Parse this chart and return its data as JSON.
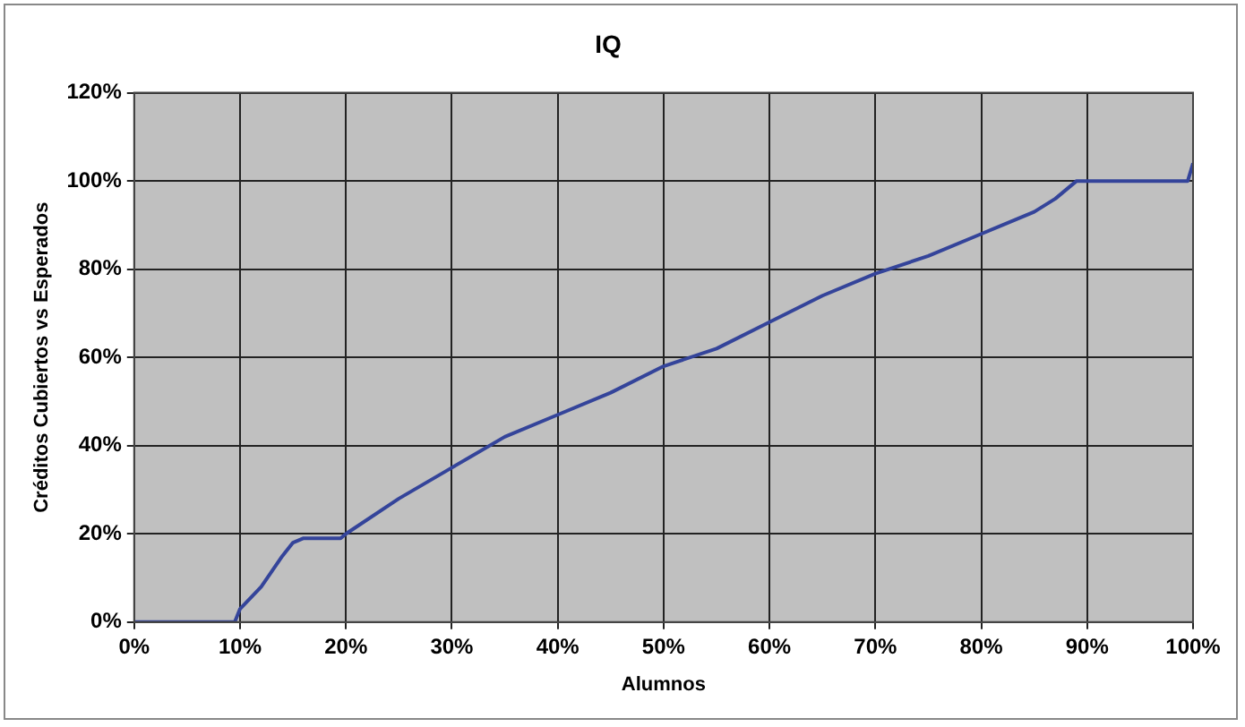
{
  "chart_data": {
    "type": "line",
    "title": "IQ",
    "xlabel": "Alumnos",
    "ylabel": "Créditos Cubiertos vs Esperados",
    "x": [
      0,
      9.5,
      10,
      12,
      14,
      15,
      16,
      19.5,
      20,
      25,
      30,
      35,
      40,
      45,
      50,
      55,
      60,
      65,
      70,
      75,
      80,
      85,
      87,
      89,
      99.5,
      100
    ],
    "series": [
      {
        "color": "#34449a",
        "values": [
          0,
          0,
          3,
          8,
          15,
          18,
          19,
          19,
          20,
          28,
          35,
          42,
          47,
          52,
          58,
          62,
          68,
          74,
          79,
          83,
          88,
          93,
          96,
          100,
          100,
          104
        ]
      }
    ],
    "xlim": [
      0,
      100
    ],
    "ylim": [
      0,
      120
    ],
    "xticks": [
      {
        "value": 0,
        "label": "0%"
      },
      {
        "value": 10,
        "label": "10%"
      },
      {
        "value": 20,
        "label": "20%"
      },
      {
        "value": 30,
        "label": "30%"
      },
      {
        "value": 40,
        "label": "40%"
      },
      {
        "value": 50,
        "label": "50%"
      },
      {
        "value": 60,
        "label": "60%"
      },
      {
        "value": 70,
        "label": "70%"
      },
      {
        "value": 80,
        "label": "80%"
      },
      {
        "value": 90,
        "label": "90%"
      },
      {
        "value": 100,
        "label": "100%"
      }
    ],
    "yticks": [
      {
        "value": 0,
        "label": "0%"
      },
      {
        "value": 20,
        "label": "20%"
      },
      {
        "value": 40,
        "label": "40%"
      },
      {
        "value": 60,
        "label": "60%"
      },
      {
        "value": 80,
        "label": "80%"
      },
      {
        "value": 100,
        "label": "100%"
      },
      {
        "value": 120,
        "label": "120%"
      }
    ],
    "grid": true,
    "legend": false,
    "marker": "none",
    "line_style": "solid"
  }
}
